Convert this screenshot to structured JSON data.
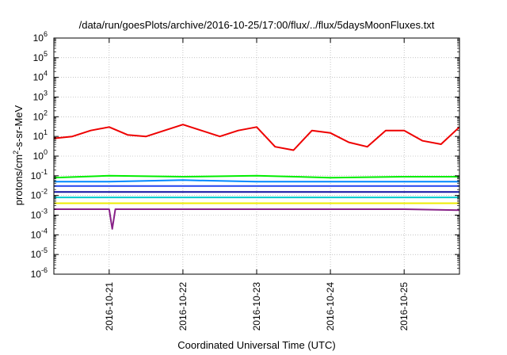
{
  "chart_data": {
    "type": "line",
    "title": "/data/run/goesPlots/archive/2016-10-25/17:00/flux/../flux/5daysMoonFluxes.txt",
    "xlabel": "Coordinated Universal Time (UTC)",
    "ylabel_base": "protons/cm",
    "ylabel_exp": "2",
    "ylabel_tail": "-s-sr-MeV",
    "yscale": "log",
    "ylim": [
      1e-06,
      1000000
    ],
    "xlim": [
      "2016-10-20T06:00",
      "2016-10-25T18:00"
    ],
    "grid": true,
    "x_ticks": [
      "2016-10-21",
      "2016-10-22",
      "2016-10-23",
      "2016-10-24",
      "2016-10-25"
    ],
    "y_ticks": [
      {
        "base": "10",
        "exp": "-6",
        "value": 1e-06
      },
      {
        "base": "10",
        "exp": "-5",
        "value": 1e-05
      },
      {
        "base": "10",
        "exp": "-4",
        "value": 0.0001
      },
      {
        "base": "10",
        "exp": "-3",
        "value": 0.001
      },
      {
        "base": "10",
        "exp": "-2",
        "value": 0.01
      },
      {
        "base": "10",
        "exp": "-1",
        "value": 0.1
      },
      {
        "base": "10",
        "exp": "0",
        "value": 1
      },
      {
        "base": "10",
        "exp": "1",
        "value": 10
      },
      {
        "base": "10",
        "exp": "2",
        "value": 100
      },
      {
        "base": "10",
        "exp": "3",
        "value": 1000
      },
      {
        "base": "10",
        "exp": "4",
        "value": 10000
      },
      {
        "base": "10",
        "exp": "5",
        "value": 100000
      },
      {
        "base": "10",
        "exp": "6",
        "value": 1000000
      }
    ],
    "series": [
      {
        "color": "#ee0000",
        "x": [
          "2016-10-20T06:00",
          "2016-10-20T12:00",
          "2016-10-20T18:00",
          "2016-10-21T00:00",
          "2016-10-21T06:00",
          "2016-10-21T12:00",
          "2016-10-21T18:00",
          "2016-10-22T00:00",
          "2016-10-22T06:00",
          "2016-10-22T12:00",
          "2016-10-22T18:00",
          "2016-10-23T00:00",
          "2016-10-23T06:00",
          "2016-10-23T12:00",
          "2016-10-23T18:00",
          "2016-10-24T00:00",
          "2016-10-24T06:00",
          "2016-10-24T12:00",
          "2016-10-24T18:00",
          "2016-10-25T00:00",
          "2016-10-25T06:00",
          "2016-10-25T12:00",
          "2016-10-25T18:00"
        ],
        "values": [
          8,
          10,
          20,
          30,
          12,
          10,
          20,
          40,
          20,
          10,
          20,
          30,
          3,
          2,
          20,
          15,
          5,
          3,
          20,
          20,
          6,
          4,
          30
        ]
      },
      {
        "color": "#00ee00",
        "x": [
          "2016-10-20T06:00",
          "2016-10-21T00:00",
          "2016-10-22T00:00",
          "2016-10-23T00:00",
          "2016-10-24T00:00",
          "2016-10-25T00:00",
          "2016-10-25T18:00"
        ],
        "values": [
          0.08,
          0.1,
          0.09,
          0.1,
          0.08,
          0.09,
          0.09
        ]
      },
      {
        "color": "#0088ff",
        "x": [
          "2016-10-20T06:00",
          "2016-10-21T00:00",
          "2016-10-22T00:00",
          "2016-10-23T00:00",
          "2016-10-24T00:00",
          "2016-10-25T00:00",
          "2016-10-25T18:00"
        ],
        "values": [
          0.05,
          0.05,
          0.06,
          0.05,
          0.05,
          0.05,
          0.05
        ]
      },
      {
        "color": "#2244ee",
        "x": [
          "2016-10-20T06:00",
          "2016-10-21T00:00",
          "2016-10-22T00:00",
          "2016-10-23T00:00",
          "2016-10-24T00:00",
          "2016-10-25T00:00",
          "2016-10-25T18:00"
        ],
        "values": [
          0.03,
          0.03,
          0.03,
          0.03,
          0.03,
          0.03,
          0.03
        ]
      },
      {
        "color": "#1010a0",
        "x": [
          "2016-10-20T06:00",
          "2016-10-21T00:00",
          "2016-10-22T00:00",
          "2016-10-23T00:00",
          "2016-10-24T00:00",
          "2016-10-25T00:00",
          "2016-10-25T18:00"
        ],
        "values": [
          0.015,
          0.015,
          0.015,
          0.015,
          0.015,
          0.015,
          0.015
        ]
      },
      {
        "color": "#00cccc",
        "x": [
          "2016-10-20T06:00",
          "2016-10-21T00:00",
          "2016-10-22T00:00",
          "2016-10-23T00:00",
          "2016-10-24T00:00",
          "2016-10-25T00:00",
          "2016-10-25T18:00"
        ],
        "values": [
          0.008,
          0.008,
          0.008,
          0.008,
          0.008,
          0.008,
          0.008
        ]
      },
      {
        "color": "#eeee00",
        "x": [
          "2016-10-20T06:00",
          "2016-10-21T00:00",
          "2016-10-22T00:00",
          "2016-10-23T00:00",
          "2016-10-24T00:00",
          "2016-10-25T00:00",
          "2016-10-25T18:00"
        ],
        "values": [
          0.004,
          0.004,
          0.004,
          0.004,
          0.004,
          0.004,
          0.004
        ]
      },
      {
        "color": "#882288",
        "x": [
          "2016-10-20T06:00",
          "2016-10-21T00:00",
          "2016-10-21T01:00",
          "2016-10-21T02:00",
          "2016-10-22T00:00",
          "2016-10-23T00:00",
          "2016-10-24T00:00",
          "2016-10-25T00:00",
          "2016-10-25T18:00"
        ],
        "values": [
          0.002,
          0.002,
          0.0002,
          0.002,
          0.002,
          0.002,
          0.002,
          0.002,
          0.0018
        ]
      }
    ]
  }
}
